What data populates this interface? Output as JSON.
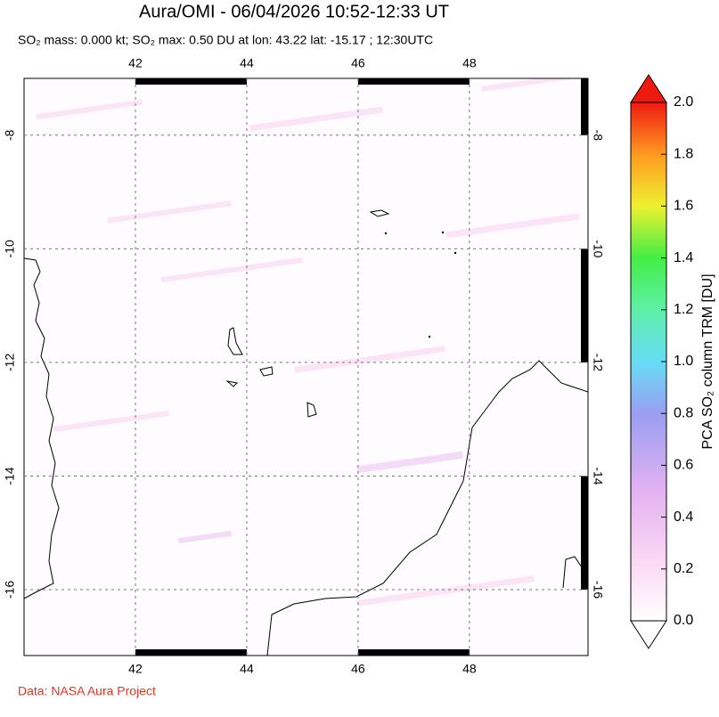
{
  "chart_data": {
    "type": "map",
    "title": "Aura/OMI - 06/04/2026 10:52-12:33 UT",
    "subtitle": "SO₂ mass: 0.000 kt; SO₂ max: 0.50 DU at lon: 43.22 lat: -15.17 ; 12:30UTC",
    "xlim": [
      40,
      50.13
    ],
    "ylim": [
      -17.16,
      -7.0
    ],
    "xticks": [
      42,
      44,
      46,
      48
    ],
    "yticks": [
      -8,
      -10,
      -12,
      -14,
      -16
    ],
    "grid": true,
    "colorbar": {
      "label": "PCA SO₂ column TRM [DU]",
      "lim": [
        0,
        2
      ],
      "ticks": [
        {
          "value": 0,
          "label": "0.0"
        },
        0.2,
        0.4,
        0.6,
        0.8,
        {
          "value": 1,
          "label": "1.0"
        },
        1.2,
        1.4,
        1.6,
        1.8,
        {
          "value": 2,
          "label": "2.0"
        }
      ]
    },
    "source": "Data: NASA Aura Project"
  }
}
